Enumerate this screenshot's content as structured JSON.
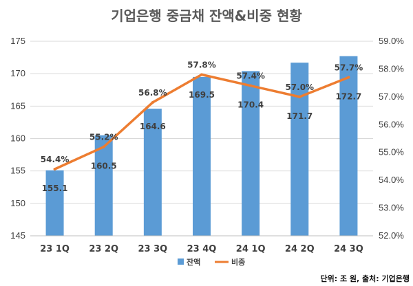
{
  "chart_data": {
    "type": "bar",
    "title": "기업은행 중금채 잔액&비중 현황",
    "categories": [
      "23 1Q",
      "23 2Q",
      "23 3Q",
      "23 4Q",
      "24 1Q",
      "24 2Q",
      "24 3Q"
    ],
    "series": [
      {
        "name": "잔액",
        "type": "bar",
        "axis": "left",
        "values": [
          155.1,
          160.5,
          164.6,
          169.5,
          170.4,
          171.7,
          172.7
        ],
        "labels": [
          "155.1",
          "160.5",
          "164.6",
          "169.5",
          "170.4",
          "171.7",
          "172.7"
        ],
        "color": "#5B9BD5"
      },
      {
        "name": "비중",
        "type": "line",
        "axis": "right",
        "values": [
          54.4,
          55.2,
          56.8,
          57.8,
          57.4,
          57.0,
          57.7
        ],
        "labels": [
          "54.4%",
          "55.2%",
          "56.8%",
          "57.8%",
          "57.4%",
          "57.0%",
          "57.7%"
        ],
        "color": "#ED7D31"
      }
    ],
    "y_left": {
      "lim": [
        145,
        175
      ],
      "ticks": [
        "145",
        "150",
        "155",
        "160",
        "165",
        "170",
        "175"
      ]
    },
    "y_right": {
      "lim": [
        52.0,
        59.0
      ],
      "ticks": [
        "52.0%",
        "53.0%",
        "54.0%",
        "55.0%",
        "56.0%",
        "57.0%",
        "58.0%",
        "59.0%"
      ]
    },
    "grid": true,
    "legend": "bottom-center",
    "source_note": "단위: 조 원, 출처: 기업은행"
  }
}
